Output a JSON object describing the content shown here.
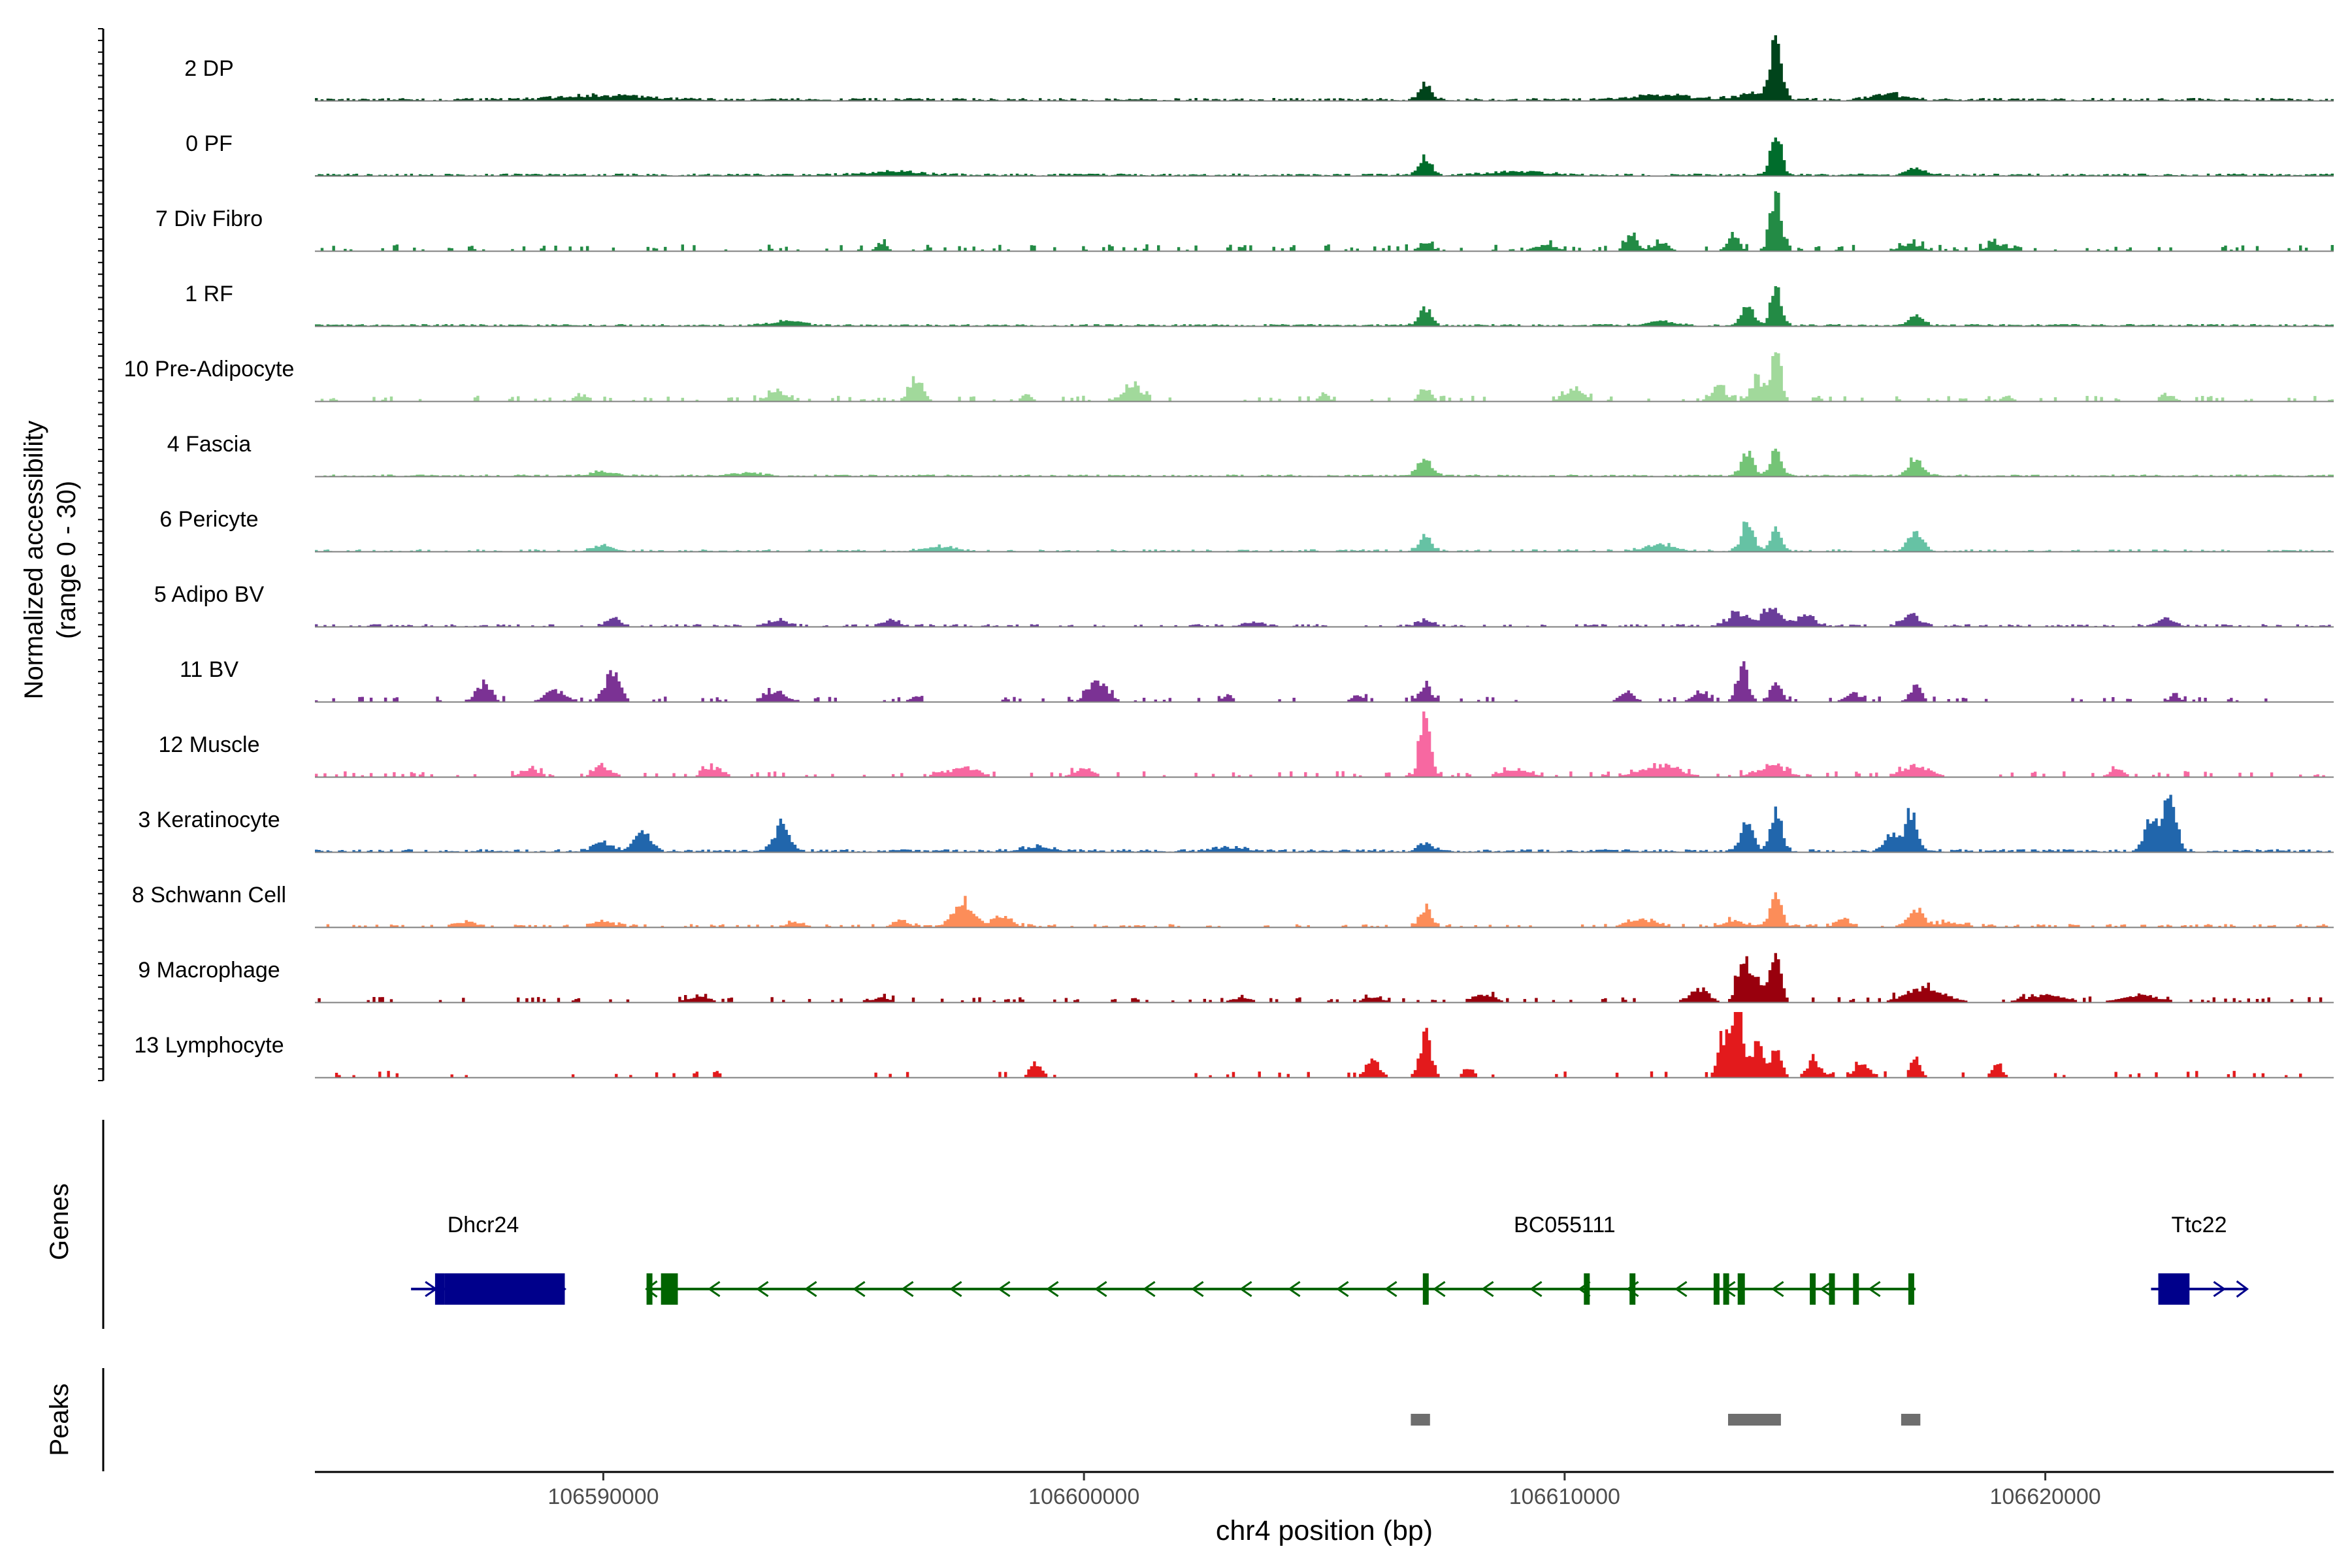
{
  "chart_data": {
    "type": "coverage-track",
    "y_axis_label_line1": "Normalized accessibility",
    "y_axis_label_line2": "(range 0 - 30)",
    "ylim": [
      0,
      30
    ],
    "genes_label": "Genes",
    "peaks_label": "Peaks",
    "xlabel": "chr4 position (bp)",
    "xlim": [
      106584000,
      106626000
    ],
    "x_ticks": [
      {
        "value": 106590000,
        "label": "106590000"
      },
      {
        "value": 106600000,
        "label": "106600000"
      },
      {
        "value": 106610000,
        "label": "106610000"
      },
      {
        "value": 106620000,
        "label": "106620000"
      }
    ],
    "tracks": [
      {
        "name": "2 DP",
        "color": "#00441b",
        "density": 0.9,
        "threshold": 0.0,
        "noise": 1.2,
        "peaks": [
          [
            106607100,
            7,
            120
          ],
          [
            106614400,
            26,
            110
          ],
          [
            106616700,
            3,
            300
          ],
          [
            106614000,
            3,
            400
          ],
          [
            106612000,
            2,
            600
          ],
          [
            106590000,
            2,
            800
          ]
        ]
      },
      {
        "name": "0 PF",
        "color": "#006d2c",
        "density": 0.9,
        "threshold": 0.0,
        "noise": 1.0,
        "peaks": [
          [
            106607100,
            8,
            130
          ],
          [
            106614400,
            19,
            110
          ],
          [
            106617300,
            3,
            200
          ],
          [
            106609000,
            1.5,
            600
          ],
          [
            106596000,
            1.5,
            600
          ]
        ]
      },
      {
        "name": "7 Div Fibro",
        "color": "#238b45",
        "density": 0.28,
        "threshold": 0.5,
        "noise": 3.0,
        "peaks": [
          [
            106614400,
            27,
            110
          ],
          [
            106613500,
            7,
            120
          ],
          [
            106611400,
            8,
            120
          ],
          [
            106612000,
            4,
            150
          ],
          [
            106607100,
            4,
            120
          ],
          [
            106595800,
            4,
            100
          ],
          [
            106617200,
            3,
            200
          ],
          [
            106619000,
            3,
            200
          ],
          [
            106609600,
            3,
            200
          ]
        ]
      },
      {
        "name": "1 RF",
        "color": "#238b45",
        "density": 0.9,
        "threshold": 0.0,
        "noise": 0.9,
        "peaks": [
          [
            106614400,
            17,
            110
          ],
          [
            106613800,
            9,
            130
          ],
          [
            106607100,
            7,
            130
          ],
          [
            106617300,
            4,
            150
          ],
          [
            106593800,
            2,
            300
          ],
          [
            106612000,
            2,
            300
          ]
        ]
      },
      {
        "name": "10 Pre-Adipocyte",
        "color": "#a1d99b",
        "density": 0.3,
        "threshold": 0.6,
        "noise": 2.5,
        "peaks": [
          [
            106614400,
            22,
            100
          ],
          [
            106614000,
            10,
            130
          ],
          [
            106613200,
            6,
            150
          ],
          [
            106596500,
            10,
            140
          ],
          [
            106601000,
            8,
            180
          ],
          [
            106607100,
            6,
            120
          ],
          [
            106610200,
            5,
            200
          ],
          [
            106593600,
            4,
            200
          ],
          [
            106605000,
            3,
            100
          ],
          [
            106598800,
            3,
            100
          ],
          [
            106619200,
            3,
            100
          ],
          [
            106622600,
            3,
            100
          ],
          [
            106589500,
            3,
            100
          ]
        ]
      },
      {
        "name": "4 Fascia",
        "color": "#74c476",
        "density": 0.8,
        "threshold": 0.0,
        "noise": 0.8,
        "peaks": [
          [
            106614400,
            12,
            110
          ],
          [
            106613800,
            10,
            130
          ],
          [
            106607100,
            7,
            150
          ],
          [
            106617300,
            8,
            150
          ],
          [
            106590000,
            2,
            250
          ],
          [
            106593000,
            1.5,
            300
          ]
        ]
      },
      {
        "name": "6 Pericyte",
        "color": "#66c2a4",
        "density": 0.5,
        "threshold": 0.2,
        "noise": 1.0,
        "peaks": [
          [
            106613800,
            12,
            130
          ],
          [
            106614400,
            11,
            110
          ],
          [
            106617300,
            9,
            150
          ],
          [
            106607100,
            7,
            130
          ],
          [
            106590000,
            3,
            200
          ],
          [
            106612000,
            3,
            300
          ],
          [
            106597000,
            2,
            300
          ]
        ]
      },
      {
        "name": "5 Adipo BV",
        "color": "#6a3d9a",
        "density": 0.55,
        "threshold": 0.3,
        "noise": 1.1,
        "peaks": [
          [
            106614300,
            9,
            180
          ],
          [
            106613600,
            6,
            200
          ],
          [
            106615000,
            5,
            200
          ],
          [
            106617200,
            5,
            180
          ],
          [
            106590200,
            4,
            150
          ],
          [
            106593600,
            3,
            200
          ],
          [
            106596000,
            3,
            150
          ],
          [
            106607100,
            3,
            150
          ],
          [
            106622500,
            3,
            200
          ],
          [
            106603500,
            2,
            200
          ]
        ]
      },
      {
        "name": "11 BV",
        "color": "#7b3294",
        "density": 0.22,
        "threshold": 0.6,
        "noise": 2.5,
        "peaks": [
          [
            106590200,
            13,
            150
          ],
          [
            106587500,
            8,
            150
          ],
          [
            106613700,
            16,
            120
          ],
          [
            106614400,
            10,
            110
          ],
          [
            106607100,
            8,
            120
          ],
          [
            106617300,
            7,
            120
          ],
          [
            106600300,
            9,
            200
          ],
          [
            106593600,
            5,
            200
          ],
          [
            106589000,
            5,
            200
          ],
          [
            106612800,
            4,
            150
          ],
          [
            106616000,
            4,
            150
          ],
          [
            106603000,
            3,
            100
          ],
          [
            106611300,
            4,
            150
          ],
          [
            106622700,
            3,
            100
          ],
          [
            106596500,
            3,
            100
          ],
          [
            106605700,
            3,
            120
          ]
        ]
      },
      {
        "name": "12 Muscle",
        "color": "#f768a1",
        "density": 0.3,
        "threshold": 0.7,
        "noise": 2.6,
        "peaks": [
          [
            106607100,
            30,
            110
          ],
          [
            106612000,
            5,
            400
          ],
          [
            106614300,
            5,
            300
          ],
          [
            106617300,
            5,
            300
          ],
          [
            106609000,
            3,
            300
          ],
          [
            106597500,
            4,
            300
          ],
          [
            106590000,
            4,
            200
          ],
          [
            106592300,
            4,
            200
          ],
          [
            106600000,
            4,
            200
          ],
          [
            106588500,
            3,
            200
          ],
          [
            106621500,
            3,
            150
          ]
        ]
      },
      {
        "name": "3 Keratinocyte",
        "color": "#2166ac",
        "density": 0.8,
        "threshold": 0.0,
        "noise": 1.3,
        "peaks": [
          [
            106622600,
            26,
            130
          ],
          [
            106622200,
            14,
            130
          ],
          [
            106614400,
            20,
            110
          ],
          [
            106613800,
            13,
            120
          ],
          [
            106617200,
            17,
            120
          ],
          [
            106616800,
            7,
            150
          ],
          [
            106593700,
            12,
            150
          ],
          [
            106590800,
            9,
            160
          ],
          [
            106590000,
            4,
            200
          ],
          [
            106607100,
            4,
            150
          ],
          [
            106599000,
            2,
            300
          ],
          [
            106603000,
            2,
            300
          ]
        ]
      },
      {
        "name": "8 Schwann Cell",
        "color": "#fc8d59",
        "density": 0.45,
        "threshold": 0.5,
        "noise": 1.4,
        "peaks": [
          [
            106614400,
            15,
            110
          ],
          [
            106597500,
            11,
            200
          ],
          [
            106607100,
            9,
            120
          ],
          [
            106617300,
            8,
            150
          ],
          [
            106598300,
            4,
            200
          ],
          [
            106611600,
            3,
            300
          ],
          [
            106613500,
            3,
            200
          ],
          [
            106615800,
            3,
            150
          ],
          [
            106587200,
            3,
            150
          ],
          [
            106590000,
            3,
            200
          ],
          [
            106594000,
            2,
            200
          ],
          [
            106596200,
            3,
            150
          ],
          [
            106618000,
            2,
            300
          ]
        ]
      },
      {
        "name": "9 Macrophage",
        "color": "#99000d",
        "density": 0.28,
        "threshold": 0.7,
        "noise": 2.4,
        "peaks": [
          [
            106614400,
            23,
            110
          ],
          [
            106613700,
            20,
            120
          ],
          [
            106614000,
            10,
            130
          ],
          [
            106612800,
            6,
            200
          ],
          [
            106617500,
            6,
            400
          ],
          [
            106620000,
            3,
            400
          ],
          [
            106622000,
            3,
            400
          ],
          [
            106592000,
            3,
            200
          ],
          [
            106603300,
            2,
            200
          ],
          [
            106595800,
            2,
            200
          ],
          [
            106606000,
            2,
            200
          ],
          [
            106608300,
            3,
            250
          ]
        ]
      },
      {
        "name": "13 Lymphocyte",
        "color": "#e31a1c",
        "density": 0.16,
        "threshold": 1.0,
        "noise": 3.0,
        "peaks": [
          [
            106613600,
            30,
            110
          ],
          [
            106613300,
            18,
            120
          ],
          [
            106614000,
            15,
            120
          ],
          [
            106614400,
            12,
            110
          ],
          [
            106607100,
            19,
            120
          ],
          [
            106606000,
            7,
            150
          ],
          [
            106599000,
            7,
            120
          ],
          [
            106617300,
            10,
            100
          ],
          [
            106615200,
            7,
            150
          ],
          [
            106616200,
            6,
            150
          ],
          [
            106608000,
            5,
            100
          ],
          [
            106619000,
            5,
            120
          ]
        ]
      }
    ],
    "genes": [
      {
        "name": "Dhcr24",
        "color": "#00008b",
        "start": 106586000,
        "end": 106589200,
        "strand": "+",
        "label_pos": 106587500,
        "exons": [
          [
            106586500,
            106586700,
            "tall"
          ],
          [
            106586700,
            106589200,
            "tall"
          ]
        ]
      },
      {
        "name": "BC055111",
        "color": "#006400",
        "start": 106590900,
        "end": 106617300,
        "strand": "-",
        "label_pos": 106610000,
        "exons": [
          [
            106590900,
            106591000,
            "tall"
          ],
          [
            106591200,
            106591550,
            "tall"
          ],
          [
            106607050,
            106607150,
            "tall"
          ],
          [
            106610400,
            106610500,
            "tall"
          ],
          [
            106611350,
            106611450,
            "tall"
          ],
          [
            106613100,
            106613200,
            "tall"
          ],
          [
            106613300,
            106613400,
            "tall"
          ],
          [
            106613600,
            106613750,
            "tall"
          ],
          [
            106615100,
            106615200,
            "tall"
          ],
          [
            106615500,
            106615600,
            "tall"
          ],
          [
            106616000,
            106616100,
            "tall"
          ],
          [
            106617150,
            106617250,
            "tall"
          ]
        ]
      },
      {
        "name": "Ttc22",
        "color": "#00008b",
        "start": 106622200,
        "end": 106624200,
        "strand": "+",
        "label_pos": 106623200,
        "exons": [
          [
            106622350,
            106623000,
            "tall"
          ]
        ]
      }
    ],
    "peaks": [
      [
        106606800,
        106607200
      ],
      [
        106613400,
        106614500
      ],
      [
        106617000,
        106617400
      ]
    ]
  }
}
